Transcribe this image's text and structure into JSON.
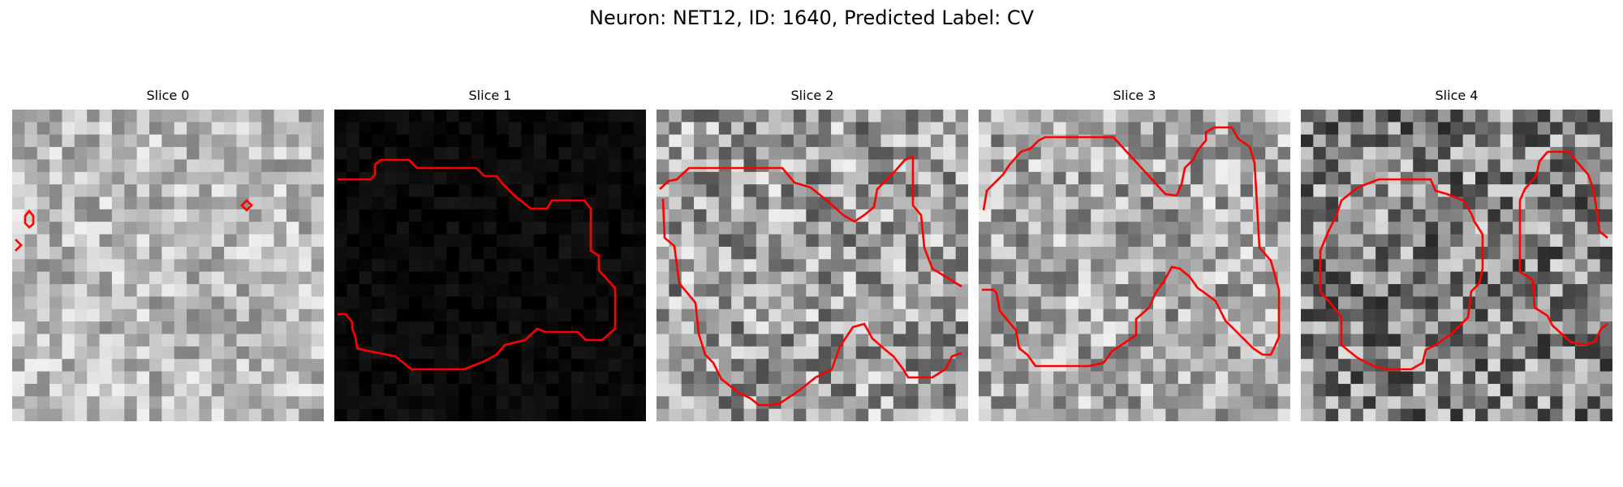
{
  "figure": {
    "title": "Neuron: NET12, ID: 1640, Predicted Label: CV"
  },
  "colors": {
    "contour": "#ff0000",
    "background": "#ffffff"
  },
  "colormap": "grayscale",
  "slices": [
    {
      "title": "Slice 0",
      "content": "grayscale microscopy patch, mostly light gray with darker region at bottom-left"
    },
    {
      "title": "Slice 1",
      "content": "nearly black microscopy patch with faint texture at edges"
    },
    {
      "title": "Slice 2",
      "content": "grayscale microscopy patch with light blob and dark band"
    },
    {
      "title": "Slice 3",
      "content": "grayscale microscopy patch with large light oval and dark lower band"
    },
    {
      "title": "Slice 4",
      "content": "grayscale microscopy patch with dark ring structure"
    }
  ]
}
